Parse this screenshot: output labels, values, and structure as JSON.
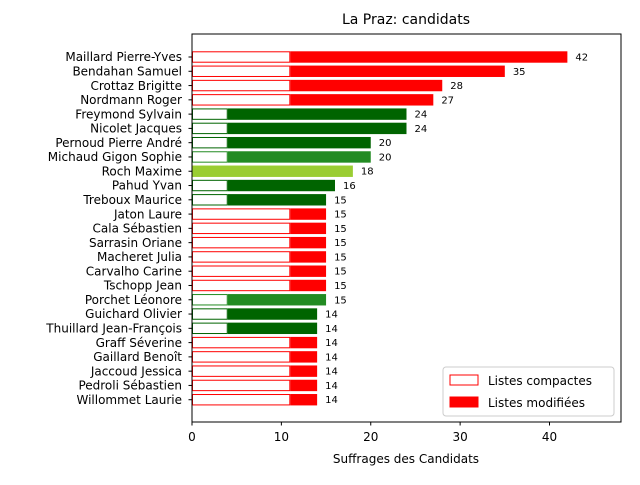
{
  "chart_data": {
    "type": "bar",
    "orientation": "horizontal",
    "title": "La Praz: candidats",
    "xlabel": "Suffrages des Candidats",
    "ylabel": "",
    "xlim": [
      0,
      48
    ],
    "xticks": [
      0,
      10,
      20,
      30,
      40
    ],
    "grid": false,
    "legend_position": "lower-right",
    "legend": [
      {
        "label": "Listes compactes",
        "style": "outline"
      },
      {
        "label": "Listes modifiées",
        "style": "filled"
      }
    ],
    "colors": {
      "red": "#ff0000",
      "dark_green": "#006400",
      "green": "#228b22",
      "yellow_green": "#9acd32"
    },
    "candidates": [
      {
        "name": "Maillard Pierre-Yves",
        "compact": 11,
        "total": 42,
        "color": "red"
      },
      {
        "name": "Bendahan Samuel",
        "compact": 11,
        "total": 35,
        "color": "red"
      },
      {
        "name": "Crottaz Brigitte",
        "compact": 11,
        "total": 28,
        "color": "red"
      },
      {
        "name": "Nordmann Roger",
        "compact": 11,
        "total": 27,
        "color": "red"
      },
      {
        "name": "Freymond Sylvain",
        "compact": 4,
        "total": 24,
        "color": "dark_green"
      },
      {
        "name": "Nicolet Jacques",
        "compact": 4,
        "total": 24,
        "color": "dark_green"
      },
      {
        "name": "Pernoud Pierre André",
        "compact": 4,
        "total": 20,
        "color": "dark_green"
      },
      {
        "name": "Michaud Gigon Sophie",
        "compact": 4,
        "total": 20,
        "color": "green"
      },
      {
        "name": "Roch Maxime",
        "compact": 0,
        "total": 18,
        "color": "yellow_green"
      },
      {
        "name": "Pahud Yvan",
        "compact": 4,
        "total": 16,
        "color": "dark_green"
      },
      {
        "name": "Treboux Maurice",
        "compact": 4,
        "total": 15,
        "color": "dark_green"
      },
      {
        "name": "Jaton Laure",
        "compact": 11,
        "total": 15,
        "color": "red"
      },
      {
        "name": "Cala Sébastien",
        "compact": 11,
        "total": 15,
        "color": "red"
      },
      {
        "name": "Sarrasin Oriane",
        "compact": 11,
        "total": 15,
        "color": "red"
      },
      {
        "name": "Macheret Julia",
        "compact": 11,
        "total": 15,
        "color": "red"
      },
      {
        "name": "Carvalho Carine",
        "compact": 11,
        "total": 15,
        "color": "red"
      },
      {
        "name": "Tschopp Jean",
        "compact": 11,
        "total": 15,
        "color": "red"
      },
      {
        "name": "Porchet Léonore",
        "compact": 4,
        "total": 15,
        "color": "green"
      },
      {
        "name": "Guichard Olivier",
        "compact": 4,
        "total": 14,
        "color": "dark_green"
      },
      {
        "name": "Thuillard Jean-François",
        "compact": 4,
        "total": 14,
        "color": "dark_green"
      },
      {
        "name": "Graff Séverine",
        "compact": 11,
        "total": 14,
        "color": "red"
      },
      {
        "name": "Gaillard Benoît",
        "compact": 11,
        "total": 14,
        "color": "red"
      },
      {
        "name": "Jaccoud Jessica",
        "compact": 11,
        "total": 14,
        "color": "red"
      },
      {
        "name": "Pedroli Sébastien",
        "compact": 11,
        "total": 14,
        "color": "red"
      },
      {
        "name": "Willommet Laurie",
        "compact": 11,
        "total": 14,
        "color": "red"
      }
    ]
  }
}
